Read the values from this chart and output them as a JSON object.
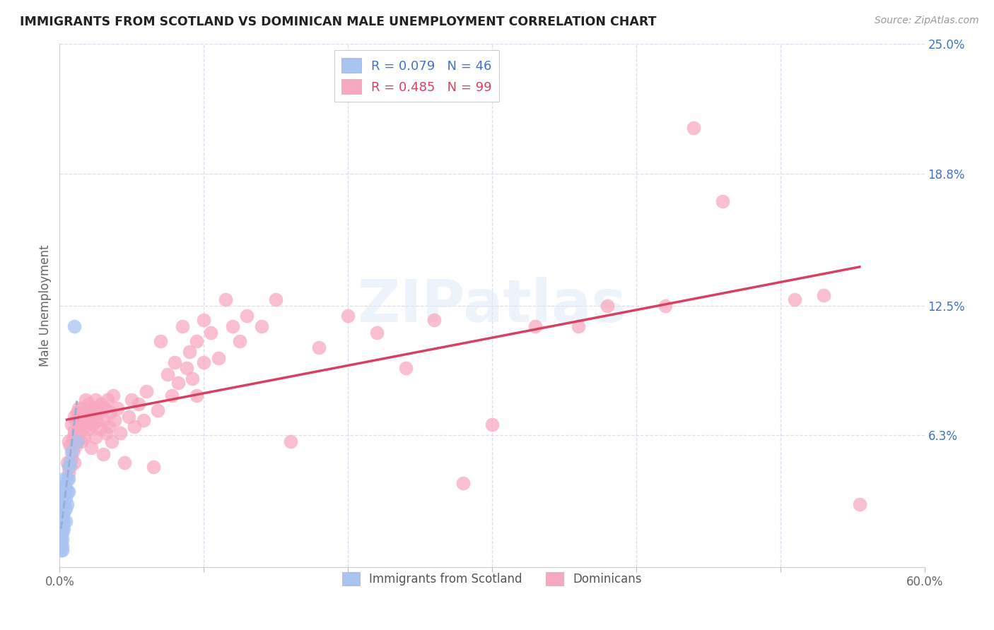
{
  "title": "IMMIGRANTS FROM SCOTLAND VS DOMINICAN MALE UNEMPLOYMENT CORRELATION CHART",
  "source": "Source: ZipAtlas.com",
  "ylabel": "Male Unemployment",
  "xlim": [
    0.0,
    0.6
  ],
  "ylim": [
    0.0,
    0.25
  ],
  "xticks": [
    0.0,
    0.1,
    0.2,
    0.3,
    0.4,
    0.5,
    0.6
  ],
  "xticklabels": [
    "0.0%",
    "",
    "",
    "",
    "",
    "",
    "60.0%"
  ],
  "ytick_labels_right": [
    "25.0%",
    "18.8%",
    "12.5%",
    "6.3%"
  ],
  "ytick_vals_right": [
    0.25,
    0.188,
    0.125,
    0.063
  ],
  "scotland_color": "#a8c4f0",
  "dominican_color": "#f8a8c0",
  "scotland_line_color": "#90b0d8",
  "dominican_line_color": "#d84060",
  "scotland_R": 0.079,
  "scotland_N": 46,
  "dominican_R": 0.485,
  "dominican_N": 99,
  "watermark": "ZIPatlas",
  "scotland_points": [
    [
      0.001,
      0.035
    ],
    [
      0.001,
      0.032
    ],
    [
      0.001,
      0.03
    ],
    [
      0.001,
      0.028
    ],
    [
      0.001,
      0.025
    ],
    [
      0.001,
      0.023
    ],
    [
      0.001,
      0.021
    ],
    [
      0.001,
      0.018
    ],
    [
      0.001,
      0.016
    ],
    [
      0.001,
      0.014
    ],
    [
      0.001,
      0.012
    ],
    [
      0.001,
      0.01
    ],
    [
      0.001,
      0.008
    ],
    [
      0.002,
      0.038
    ],
    [
      0.002,
      0.035
    ],
    [
      0.002,
      0.032
    ],
    [
      0.002,
      0.029
    ],
    [
      0.002,
      0.026
    ],
    [
      0.002,
      0.023
    ],
    [
      0.002,
      0.02
    ],
    [
      0.002,
      0.018
    ],
    [
      0.002,
      0.016
    ],
    [
      0.002,
      0.013
    ],
    [
      0.002,
      0.01
    ],
    [
      0.002,
      0.008
    ],
    [
      0.003,
      0.042
    ],
    [
      0.003,
      0.038
    ],
    [
      0.003,
      0.035
    ],
    [
      0.003,
      0.03
    ],
    [
      0.003,
      0.026
    ],
    [
      0.003,
      0.022
    ],
    [
      0.003,
      0.018
    ],
    [
      0.004,
      0.038
    ],
    [
      0.004,
      0.033
    ],
    [
      0.004,
      0.028
    ],
    [
      0.004,
      0.022
    ],
    [
      0.005,
      0.042
    ],
    [
      0.005,
      0.036
    ],
    [
      0.005,
      0.03
    ],
    [
      0.006,
      0.048
    ],
    [
      0.006,
      0.042
    ],
    [
      0.006,
      0.036
    ],
    [
      0.007,
      0.05
    ],
    [
      0.008,
      0.055
    ],
    [
      0.01,
      0.115
    ],
    [
      0.012,
      0.06
    ]
  ],
  "dominican_points": [
    [
      0.005,
      0.05
    ],
    [
      0.006,
      0.045
    ],
    [
      0.006,
      0.06
    ],
    [
      0.007,
      0.048
    ],
    [
      0.007,
      0.058
    ],
    [
      0.008,
      0.052
    ],
    [
      0.008,
      0.068
    ],
    [
      0.009,
      0.055
    ],
    [
      0.009,
      0.062
    ],
    [
      0.01,
      0.05
    ],
    [
      0.01,
      0.065
    ],
    [
      0.01,
      0.072
    ],
    [
      0.011,
      0.058
    ],
    [
      0.011,
      0.07
    ],
    [
      0.012,
      0.06
    ],
    [
      0.012,
      0.074
    ],
    [
      0.013,
      0.064
    ],
    [
      0.013,
      0.076
    ],
    [
      0.014,
      0.068
    ],
    [
      0.015,
      0.06
    ],
    [
      0.015,
      0.076
    ],
    [
      0.016,
      0.07
    ],
    [
      0.017,
      0.062
    ],
    [
      0.017,
      0.074
    ],
    [
      0.018,
      0.067
    ],
    [
      0.018,
      0.08
    ],
    [
      0.019,
      0.072
    ],
    [
      0.02,
      0.066
    ],
    [
      0.02,
      0.078
    ],
    [
      0.021,
      0.07
    ],
    [
      0.022,
      0.057
    ],
    [
      0.022,
      0.074
    ],
    [
      0.023,
      0.068
    ],
    [
      0.024,
      0.076
    ],
    [
      0.025,
      0.062
    ],
    [
      0.025,
      0.08
    ],
    [
      0.026,
      0.07
    ],
    [
      0.027,
      0.074
    ],
    [
      0.028,
      0.066
    ],
    [
      0.029,
      0.078
    ],
    [
      0.03,
      0.054
    ],
    [
      0.03,
      0.07
    ],
    [
      0.031,
      0.076
    ],
    [
      0.032,
      0.064
    ],
    [
      0.033,
      0.08
    ],
    [
      0.034,
      0.067
    ],
    [
      0.035,
      0.074
    ],
    [
      0.036,
      0.06
    ],
    [
      0.037,
      0.082
    ],
    [
      0.038,
      0.07
    ],
    [
      0.04,
      0.076
    ],
    [
      0.042,
      0.064
    ],
    [
      0.045,
      0.05
    ],
    [
      0.048,
      0.072
    ],
    [
      0.05,
      0.08
    ],
    [
      0.052,
      0.067
    ],
    [
      0.055,
      0.078
    ],
    [
      0.058,
      0.07
    ],
    [
      0.06,
      0.084
    ],
    [
      0.065,
      0.048
    ],
    [
      0.068,
      0.075
    ],
    [
      0.07,
      0.108
    ],
    [
      0.075,
      0.092
    ],
    [
      0.078,
      0.082
    ],
    [
      0.08,
      0.098
    ],
    [
      0.082,
      0.088
    ],
    [
      0.085,
      0.115
    ],
    [
      0.088,
      0.095
    ],
    [
      0.09,
      0.103
    ],
    [
      0.092,
      0.09
    ],
    [
      0.095,
      0.082
    ],
    [
      0.095,
      0.108
    ],
    [
      0.1,
      0.118
    ],
    [
      0.1,
      0.098
    ],
    [
      0.105,
      0.112
    ],
    [
      0.11,
      0.1
    ],
    [
      0.115,
      0.128
    ],
    [
      0.12,
      0.115
    ],
    [
      0.125,
      0.108
    ],
    [
      0.13,
      0.12
    ],
    [
      0.14,
      0.115
    ],
    [
      0.15,
      0.128
    ],
    [
      0.16,
      0.06
    ],
    [
      0.18,
      0.105
    ],
    [
      0.2,
      0.12
    ],
    [
      0.22,
      0.112
    ],
    [
      0.24,
      0.095
    ],
    [
      0.26,
      0.118
    ],
    [
      0.28,
      0.04
    ],
    [
      0.3,
      0.068
    ],
    [
      0.33,
      0.115
    ],
    [
      0.36,
      0.115
    ],
    [
      0.38,
      0.125
    ],
    [
      0.42,
      0.125
    ],
    [
      0.44,
      0.21
    ],
    [
      0.46,
      0.175
    ],
    [
      0.51,
      0.128
    ],
    [
      0.53,
      0.13
    ],
    [
      0.555,
      0.03
    ]
  ]
}
